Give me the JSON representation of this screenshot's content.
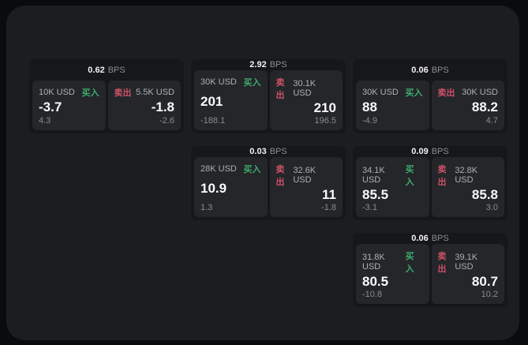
{
  "labels": {
    "buy": "买入",
    "sell": "卖出",
    "bps_unit": "BPS"
  },
  "colors": {
    "buy": "#3fab6e",
    "sell": "#cd5168"
  },
  "cards": [
    {
      "bps": "0.62",
      "buy": {
        "amount": "10K USD",
        "price": "-3.7",
        "sub": "4.3"
      },
      "sell": {
        "amount": "5.5K USD",
        "price": "-1.8",
        "sub": "-2.6"
      }
    },
    {
      "bps": "2.92",
      "buy": {
        "amount": "30K USD",
        "price": "201",
        "sub": "-188.1"
      },
      "sell": {
        "amount": "30.1K USD",
        "price": "210",
        "sub": "196.5"
      }
    },
    {
      "bps": "0.06",
      "buy": {
        "amount": "30K USD",
        "price": "88",
        "sub": "-4.9"
      },
      "sell": {
        "amount": "30K USD",
        "price": "88.2",
        "sub": "4.7"
      }
    },
    {
      "bps": "0.03",
      "buy": {
        "amount": "28K USD",
        "price": "10.9",
        "sub": "1.3"
      },
      "sell": {
        "amount": "32.6K USD",
        "price": "11",
        "sub": "-1.8"
      }
    },
    {
      "bps": "0.09",
      "buy": {
        "amount": "34.1K USD",
        "price": "85.5",
        "sub": "-3.1"
      },
      "sell": {
        "amount": "32.8K USD",
        "price": "85.8",
        "sub": "3.0"
      }
    },
    {
      "bps": "0.06",
      "buy": {
        "amount": "31.8K USD",
        "price": "80.5",
        "sub": "-10.8"
      },
      "sell": {
        "amount": "39.1K USD",
        "price": "80.7",
        "sub": "10.2"
      }
    }
  ]
}
